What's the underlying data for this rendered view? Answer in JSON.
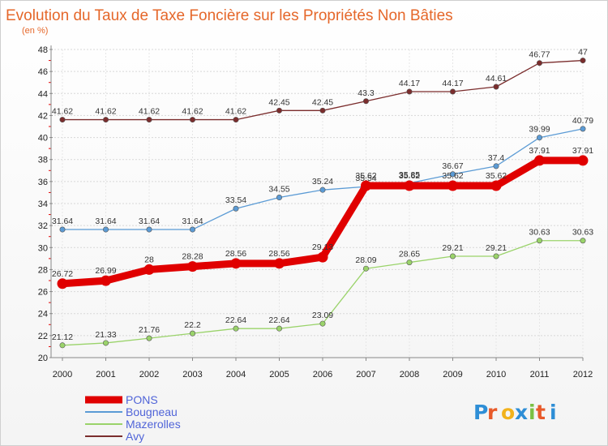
{
  "chart_data": {
    "type": "line",
    "title": "Evolution du Taux de Taxe Foncière sur les Propriétés Non Bâties",
    "subtitle": "(en %)",
    "x": [
      "2000",
      "2001",
      "2002",
      "2003",
      "2004",
      "2005",
      "2006",
      "2007",
      "2008",
      "2009",
      "2010",
      "2011",
      "2012"
    ],
    "ylim": [
      20,
      48
    ],
    "yticks": [
      20,
      22,
      24,
      26,
      28,
      30,
      32,
      34,
      36,
      38,
      40,
      42,
      44,
      46,
      48
    ],
    "grid": true,
    "legend_position": "bottom-left",
    "series": [
      {
        "name": "PONS",
        "color": "#e00000",
        "values": [
          26.72,
          26.99,
          28,
          28.28,
          28.56,
          28.56,
          29.13,
          35.62,
          35.62,
          35.62,
          35.62,
          37.91,
          37.91
        ],
        "labels": [
          "26.72",
          "26.99",
          "28",
          "28.28",
          "28.56",
          "28.56",
          "29.13",
          "35.62",
          "35.62",
          "35.62",
          "35.62",
          "37.91",
          "37.91"
        ]
      },
      {
        "name": "Bougneau",
        "color": "#5b9bd5",
        "values": [
          31.64,
          31.64,
          31.64,
          31.64,
          33.54,
          34.55,
          35.24,
          35.54,
          35.85,
          36.67,
          37.4,
          39.99,
          40.79
        ],
        "labels": [
          "31.64",
          "31.64",
          "31.64",
          "31.64",
          "33.54",
          "34.55",
          "35.24",
          "35.54",
          "35.85",
          "36.67",
          "37.4",
          "39.99",
          "40.79"
        ]
      },
      {
        "name": "Mazerolles",
        "color": "#9ad36a",
        "values": [
          21.12,
          21.33,
          21.76,
          22.2,
          22.64,
          22.64,
          23.09,
          28.09,
          28.65,
          29.21,
          29.21,
          30.63,
          30.63
        ],
        "labels": [
          "21.12",
          "21.33",
          "21.76",
          "22.2",
          "22.64",
          "22.64",
          "23.09",
          "28.09",
          "28.65",
          "29.21",
          "29.21",
          "30.63",
          "30.63"
        ]
      },
      {
        "name": "Avy",
        "color": "#7b2d2d",
        "values": [
          41.62,
          41.62,
          41.62,
          41.62,
          41.62,
          42.45,
          42.45,
          43.3,
          44.17,
          44.17,
          44.61,
          46.77,
          47
        ],
        "labels": [
          "41.62",
          "41.62",
          "41.62",
          "41.62",
          "41.62",
          "42.45",
          "42.45",
          "43.3",
          "44.17",
          "44.17",
          "44.61",
          "46.77",
          "47"
        ]
      }
    ]
  },
  "logo": {
    "text": "Proxiti"
  }
}
